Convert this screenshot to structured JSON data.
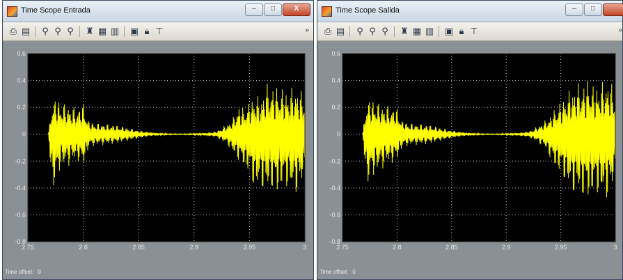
{
  "windows": [
    {
      "id": "entrada",
      "title": "Time Scope Entrada",
      "time_offset_label": "Time offset:",
      "time_offset_value": "0",
      "window_buttons": {
        "minimize": "–",
        "maximize": "□",
        "close": "X"
      }
    },
    {
      "id": "salida",
      "title": "Time Scope Salida",
      "time_offset_label": "Time offset:",
      "time_offset_value": "0",
      "window_buttons": {
        "minimize": "–",
        "maximize": "□",
        "close": ""
      }
    }
  ],
  "toolbar_icons": [
    "print-icon",
    "page-setup-icon",
    "zoom-in-icon",
    "zoom-x-icon",
    "zoom-y-icon",
    "autoscale-binoculars-icon",
    "save-axes-icon",
    "restore-axes-icon",
    "parameters-icon",
    "lock-icon",
    "signal-selector-icon"
  ],
  "toolbar_more": "»",
  "colors": {
    "plot_background": "#000000",
    "trace": "#ffff00",
    "axes_frame": "#8a9094",
    "grid": "#ffffff"
  },
  "chart_data": [
    {
      "type": "line",
      "title": "",
      "xlabel": "",
      "ylabel": "",
      "xlim": [
        2.75,
        3.0
      ],
      "ylim": [
        -0.8,
        0.6
      ],
      "xticks": [
        "2.75",
        "2.8",
        "2.85",
        "2.9",
        "2.95",
        "3"
      ],
      "yticks": [
        "0.6",
        "0.4",
        "0.2",
        "0",
        "-0.2",
        "-0.4",
        "-0.6",
        "-0.8"
      ],
      "grid": true,
      "series": [
        {
          "x": [
            2.7685,
            2.772,
            2.775,
            2.78,
            2.785,
            2.79,
            2.795,
            2.8,
            2.805,
            2.81,
            2.815,
            2.82,
            2.83,
            2.84,
            2.85,
            2.86,
            2.87,
            2.88,
            2.89,
            2.9,
            2.91,
            2.92,
            2.925,
            2.93,
            2.935,
            2.94,
            2.945,
            2.95,
            2.955,
            2.96,
            2.965,
            2.97,
            2.975,
            2.98,
            2.985,
            2.99,
            2.995,
            3.0
          ],
          "env_upper": [
            0.0,
            0.26,
            0.28,
            0.25,
            0.23,
            0.21,
            0.2,
            0.24,
            0.1,
            0.09,
            0.08,
            0.08,
            0.07,
            0.05,
            0.03,
            0.015,
            0.008,
            0.004,
            0.003,
            0.006,
            0.01,
            0.02,
            0.05,
            0.08,
            0.12,
            0.22,
            0.2,
            0.25,
            0.3,
            0.27,
            0.38,
            0.37,
            0.36,
            0.35,
            0.33,
            0.36,
            0.34,
            0.3
          ],
          "env_lower": [
            0.0,
            -0.45,
            -0.37,
            -0.25,
            -0.25,
            -0.22,
            -0.2,
            -0.25,
            -0.1,
            -0.09,
            -0.08,
            -0.08,
            -0.07,
            -0.05,
            -0.03,
            -0.015,
            -0.008,
            -0.004,
            -0.003,
            -0.006,
            -0.01,
            -0.02,
            -0.05,
            -0.08,
            -0.15,
            -0.2,
            -0.25,
            -0.3,
            -0.44,
            -0.4,
            -0.45,
            -0.42,
            -0.46,
            -0.4,
            -0.41,
            -0.46,
            -0.44,
            -0.32
          ]
        }
      ]
    },
    {
      "type": "line",
      "title": "",
      "xlabel": "",
      "ylabel": "",
      "xlim": [
        2.75,
        3.0
      ],
      "ylim": [
        -0.8,
        0.6
      ],
      "xticks": [
        "2.75",
        "2.8",
        "2.85",
        "2.9",
        "2.95",
        "3"
      ],
      "yticks": [
        "0.6",
        "0.4",
        "0.2",
        "0",
        "-0.2",
        "-0.4",
        "-0.6",
        "-0.8"
      ],
      "grid": true,
      "series": [
        {
          "x": [
            2.7685,
            2.772,
            2.775,
            2.78,
            2.785,
            2.79,
            2.795,
            2.8,
            2.805,
            2.81,
            2.815,
            2.82,
            2.83,
            2.84,
            2.85,
            2.86,
            2.87,
            2.88,
            2.89,
            2.9,
            2.91,
            2.92,
            2.925,
            2.93,
            2.935,
            2.94,
            2.945,
            2.95,
            2.955,
            2.96,
            2.965,
            2.97,
            2.975,
            2.98,
            2.985,
            2.99,
            2.995,
            3.0
          ],
          "env_upper": [
            0.0,
            0.26,
            0.27,
            0.26,
            0.23,
            0.22,
            0.21,
            0.2,
            0.1,
            0.09,
            0.08,
            0.08,
            0.07,
            0.05,
            0.03,
            0.015,
            0.008,
            0.004,
            0.003,
            0.006,
            0.01,
            0.02,
            0.04,
            0.07,
            0.1,
            0.14,
            0.2,
            0.25,
            0.3,
            0.35,
            0.38,
            0.38,
            0.42,
            0.37,
            0.38,
            0.4,
            0.42,
            0.3
          ],
          "env_lower": [
            0.0,
            -0.4,
            -0.36,
            -0.3,
            -0.27,
            -0.24,
            -0.22,
            -0.2,
            -0.1,
            -0.09,
            -0.08,
            -0.08,
            -0.07,
            -0.05,
            -0.03,
            -0.015,
            -0.008,
            -0.004,
            -0.003,
            -0.006,
            -0.01,
            -0.02,
            -0.04,
            -0.07,
            -0.1,
            -0.18,
            -0.26,
            -0.3,
            -0.38,
            -0.45,
            -0.45,
            -0.48,
            -0.5,
            -0.45,
            -0.46,
            -0.5,
            -0.48,
            -0.34
          ]
        }
      ]
    }
  ]
}
